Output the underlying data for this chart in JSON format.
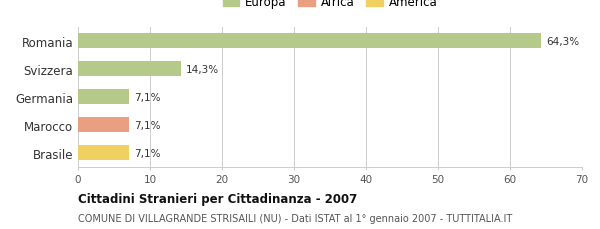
{
  "categories": [
    "Romania",
    "Svizzera",
    "Germania",
    "Marocco",
    "Brasile"
  ],
  "values": [
    64.3,
    14.3,
    7.1,
    7.1,
    7.1
  ],
  "labels": [
    "64,3%",
    "14,3%",
    "7,1%",
    "7,1%",
    "7,1%"
  ],
  "colors": [
    "#b5c98a",
    "#b5c98a",
    "#b5c98a",
    "#e8a080",
    "#f0d060"
  ],
  "legend_items": [
    {
      "label": "Europa",
      "color": "#b5c98a"
    },
    {
      "label": "Africa",
      "color": "#e8a080"
    },
    {
      "label": "America",
      "color": "#f0d060"
    }
  ],
  "xlim": [
    0,
    70
  ],
  "xticks": [
    0,
    10,
    20,
    30,
    40,
    50,
    60,
    70
  ],
  "title": "Cittadini Stranieri per Cittadinanza - 2007",
  "subtitle": "COMUNE DI VILLAGRANDE STRISAILI (NU) - Dati ISTAT al 1° gennaio 2007 - TUTTITALIA.IT",
  "background_color": "#ffffff",
  "grid_color": "#cccccc",
  "bar_height": 0.55
}
